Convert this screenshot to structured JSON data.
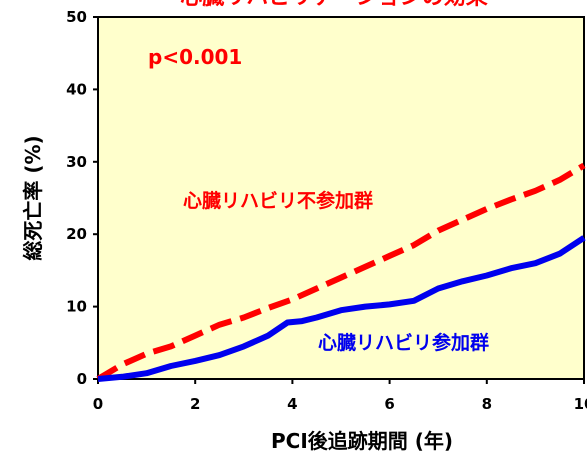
{
  "chart_data": {
    "type": "line",
    "title": "心臓リハビリテーションの効果",
    "xlabel": "PCI後追跡期間 (年)",
    "ylabel": "総死亡率 (%)",
    "xlim": [
      0,
      10
    ],
    "ylim": [
      0,
      50
    ],
    "x_ticks": [
      0,
      2,
      4,
      6,
      8,
      10
    ],
    "y_ticks": [
      0,
      10,
      20,
      30,
      40,
      50
    ],
    "grid": false,
    "annotation": "p<0.001",
    "colors": {
      "plot_background": "#ffffcc",
      "title": "#ff0000",
      "annotation": "#ff0000"
    },
    "series": [
      {
        "name": "心臓リハビリ不参加群",
        "color": "#ff0000",
        "dashed": true,
        "x": [
          0,
          0.5,
          1,
          1.5,
          2,
          2.5,
          3,
          3.5,
          4,
          4.5,
          5,
          5.5,
          6,
          6.5,
          7,
          7.5,
          8,
          8.5,
          9,
          9.5,
          10
        ],
        "y": [
          0,
          2,
          3.5,
          4.5,
          6,
          7.5,
          8.5,
          9.8,
          11,
          12.5,
          14,
          15.5,
          17,
          18.5,
          20.5,
          22,
          23.5,
          24.8,
          26,
          27.5,
          29.5
        ]
      },
      {
        "name": "心臓リハビリ参加群",
        "color": "#0000ee",
        "dashed": false,
        "x": [
          0,
          0.5,
          1,
          1.5,
          2,
          2.5,
          3,
          3.5,
          3.9,
          4.2,
          4.5,
          5,
          5.5,
          6,
          6.5,
          7,
          7.5,
          8,
          8.5,
          9,
          9.5,
          10
        ],
        "y": [
          0,
          0.3,
          0.8,
          1.8,
          2.5,
          3.3,
          4.5,
          6,
          7.8,
          8,
          8.5,
          9.5,
          10,
          10.3,
          10.8,
          12.5,
          13.5,
          14.3,
          15.3,
          16,
          17.3,
          19.5
        ]
      }
    ],
    "series_label_font_sizes": [
      19,
      19
    ]
  }
}
